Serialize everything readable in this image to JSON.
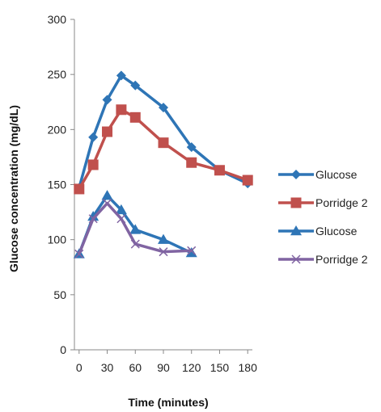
{
  "chart_data": {
    "type": "line",
    "title": "",
    "xlabel": "Time (minutes)",
    "ylabel": "Glucose concentration (mg/dL)",
    "xlim": [
      -5,
      185
    ],
    "ylim": [
      0,
      300
    ],
    "x_ticks": [
      0,
      30,
      60,
      90,
      120,
      150,
      180
    ],
    "y_ticks": [
      0,
      50,
      100,
      150,
      200,
      250,
      300
    ],
    "grid": false,
    "legend": "right",
    "series": [
      {
        "name": "Glucose",
        "color": "#2E75B6",
        "marker": "diamond",
        "x": [
          0,
          15,
          30,
          45,
          60,
          90,
          120,
          150,
          180
        ],
        "y": [
          147,
          193,
          227,
          249,
          240,
          220,
          184,
          163,
          151
        ]
      },
      {
        "name": "Porridge 2",
        "color": "#C0504D",
        "marker": "square",
        "x": [
          0,
          15,
          30,
          45,
          60,
          90,
          120,
          150,
          180
        ],
        "y": [
          146,
          168,
          198,
          218,
          211,
          188,
          170,
          163,
          154
        ]
      },
      {
        "name": "Glucose",
        "color": "#2E75B6",
        "marker": "triangle",
        "x": [
          0,
          15,
          30,
          45,
          60,
          90,
          120
        ],
        "y": [
          87,
          121,
          140,
          127,
          109,
          100,
          88
        ]
      },
      {
        "name": "Porridge 2",
        "color": "#8064A2",
        "marker": "x",
        "x": [
          0,
          15,
          30,
          45,
          60,
          90,
          120
        ],
        "y": [
          87,
          119,
          133,
          119,
          96,
          89,
          90
        ]
      }
    ]
  }
}
